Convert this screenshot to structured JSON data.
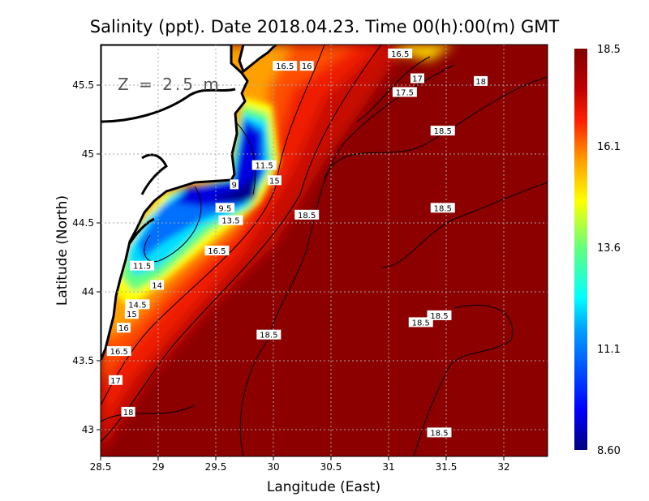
{
  "title": "Salinity (ppt). Date 2018.04.23. Time 00(h):00(m) GMT",
  "depth_label": "Z = 2.5 m",
  "chart_data": {
    "type": "heatmap",
    "variable": "Salinity (ppt)",
    "xlabel": "Langitude (East)",
    "ylabel": "Latitude (North)",
    "xlim": [
      28.5,
      32.38
    ],
    "ylim": [
      42.8,
      45.79
    ],
    "x_ticks": [
      "28.5",
      "29",
      "29.5",
      "30",
      "30.5",
      "31",
      "31.5",
      "32"
    ],
    "x_tick_values": [
      28.5,
      29,
      29.5,
      30,
      30.5,
      31,
      31.5,
      32
    ],
    "y_ticks": [
      "45.5",
      "45",
      "44.5",
      "44",
      "43.5",
      "43"
    ],
    "y_tick_values": [
      45.5,
      45,
      44.5,
      44,
      43.5,
      43
    ],
    "grid": true,
    "colorbar": {
      "min": 8.6,
      "max": 18.5,
      "tick_labels": [
        "18.5",
        "16.1",
        "13.6",
        "11.1",
        "8.60"
      ],
      "tick_values": [
        18.5,
        16.1,
        13.6,
        11.1,
        8.6
      ],
      "colors": [
        "#000080",
        "#0000ff",
        "#00a0ff",
        "#00ffff",
        "#60ff80",
        "#ffff00",
        "#ffa000",
        "#ff2000",
        "#c00000",
        "#800000"
      ]
    },
    "contour_labels": [
      {
        "text": "16.5",
        "lon": 30.1,
        "lat": 45.64
      },
      {
        "text": "16",
        "lon": 30.29,
        "lat": 45.64
      },
      {
        "text": "16.5",
        "lon": 31.1,
        "lat": 45.73
      },
      {
        "text": "17",
        "lon": 31.25,
        "lat": 45.55
      },
      {
        "text": "17.5",
        "lon": 31.14,
        "lat": 45.45
      },
      {
        "text": "18",
        "lon": 31.8,
        "lat": 45.53
      },
      {
        "text": "18.5",
        "lon": 31.47,
        "lat": 45.17
      },
      {
        "text": "18.5",
        "lon": 31.47,
        "lat": 44.61
      },
      {
        "text": "18.5",
        "lon": 30.29,
        "lat": 44.56
      },
      {
        "text": "11.5",
        "lon": 29.92,
        "lat": 44.92
      },
      {
        "text": "15",
        "lon": 30.01,
        "lat": 44.81
      },
      {
        "text": "9",
        "lon": 29.66,
        "lat": 44.78
      },
      {
        "text": "9.5",
        "lon": 29.58,
        "lat": 44.61
      },
      {
        "text": "13.5",
        "lon": 29.63,
        "lat": 44.52
      },
      {
        "text": "16.5",
        "lon": 29.51,
        "lat": 44.3
      },
      {
        "text": "11.5",
        "lon": 28.86,
        "lat": 44.19
      },
      {
        "text": "14",
        "lon": 28.99,
        "lat": 44.05
      },
      {
        "text": "14.5",
        "lon": 28.82,
        "lat": 43.91
      },
      {
        "text": "15",
        "lon": 28.77,
        "lat": 43.84
      },
      {
        "text": "16",
        "lon": 28.7,
        "lat": 43.74
      },
      {
        "text": "16.5",
        "lon": 28.66,
        "lat": 43.57
      },
      {
        "text": "17",
        "lon": 28.63,
        "lat": 43.36
      },
      {
        "text": "18",
        "lon": 28.74,
        "lat": 43.13
      },
      {
        "text": "18.5",
        "lon": 29.96,
        "lat": 43.69
      },
      {
        "text": "18.5",
        "lon": 31.28,
        "lat": 43.78
      },
      {
        "text": "18.5",
        "lon": 31.44,
        "lat": 43.83
      },
      {
        "text": "18.5",
        "lon": 31.44,
        "lat": 42.98
      }
    ]
  }
}
